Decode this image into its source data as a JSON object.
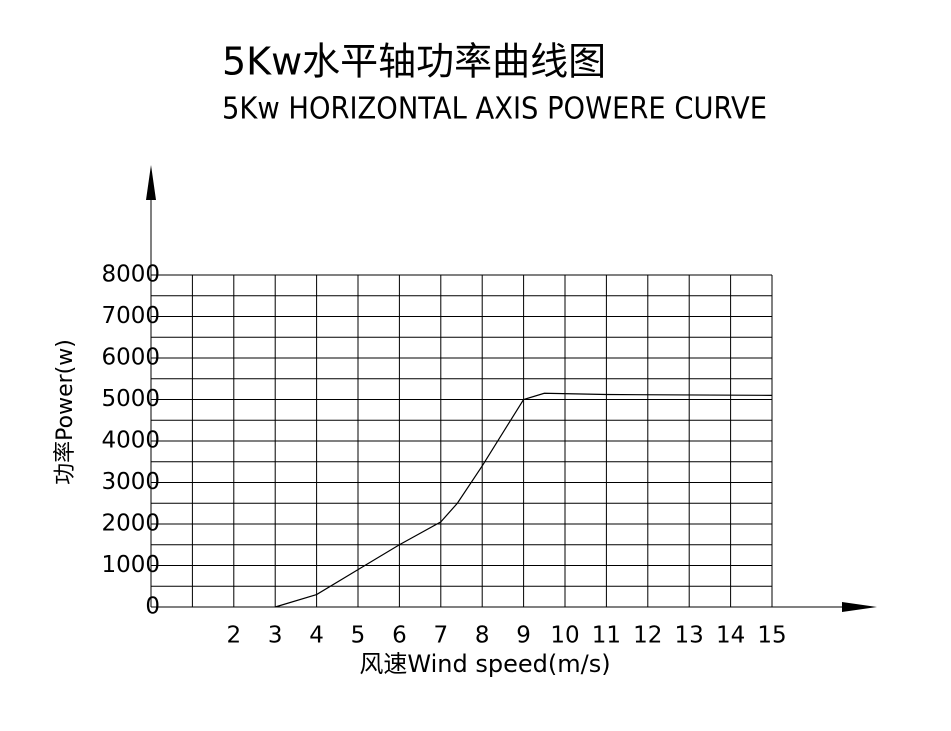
{
  "chart_data": {
    "type": "line",
    "title": "5Kw水平轴功率曲线图",
    "subtitle": "5Kw HORIZONTAL AXIS POWERE CURVE",
    "x_label": "风速Wind speed(m/s)",
    "y_label": "功率Power(w)",
    "xlim": [
      0,
      15
    ],
    "ylim": [
      0,
      8000
    ],
    "xticks": [
      2,
      3,
      4,
      5,
      6,
      7,
      8,
      9,
      10,
      11,
      12,
      13,
      14,
      15
    ],
    "yticks": [
      0,
      1000,
      2000,
      3000,
      4000,
      5000,
      6000,
      7000,
      8000
    ],
    "x_grid_lines": [
      1,
      2,
      3,
      4,
      5,
      6,
      7,
      8,
      9,
      10,
      11,
      12,
      13,
      14,
      15
    ],
    "y_grid_lines": [
      500,
      1000,
      1500,
      2000,
      2500,
      3000,
      3500,
      4000,
      4500,
      5000,
      5500,
      6000,
      6500,
      7000,
      7500,
      8000
    ],
    "grid": true,
    "color": "#000000",
    "x": [
      3,
      4,
      5,
      6,
      7,
      7.4,
      8,
      8.5,
      9,
      9.5,
      11,
      15
    ],
    "values": [
      0,
      300,
      900,
      1500,
      2050,
      2500,
      3400,
      4200,
      5000,
      5150,
      5120,
      5100
    ]
  }
}
